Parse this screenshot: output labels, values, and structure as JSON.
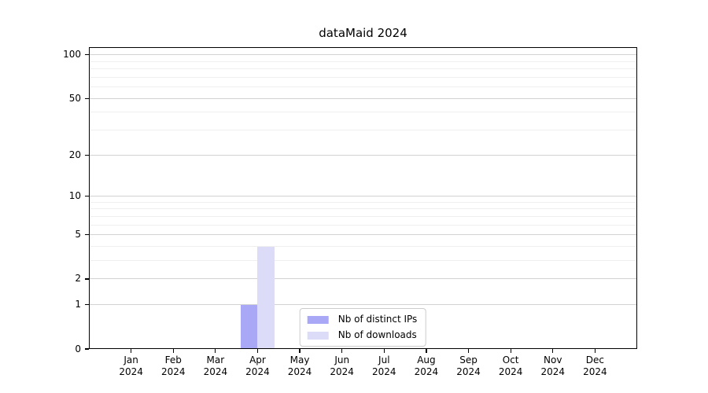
{
  "chart_data": {
    "type": "bar",
    "title": "dataMaid 2024",
    "categories": [
      "Jan 2024",
      "Feb 2024",
      "Mar 2024",
      "Apr 2024",
      "May 2024",
      "Jun 2024",
      "Jul 2024",
      "Aug 2024",
      "Sep 2024",
      "Oct 2024",
      "Nov 2024",
      "Dec 2024"
    ],
    "series": [
      {
        "name": "Nb of distinct IPs",
        "color": "#a8a8f7",
        "values": [
          0,
          0,
          0,
          1,
          0,
          0,
          0,
          0,
          0,
          0,
          0,
          0
        ]
      },
      {
        "name": "Nb of downloads",
        "color": "#dcdcf9",
        "values": [
          0,
          0,
          0,
          4,
          0,
          0,
          0,
          0,
          0,
          0,
          0,
          0
        ]
      }
    ],
    "xlabel": "",
    "ylabel": "",
    "y_axis": {
      "scale": "log1p",
      "min": 0,
      "max": 113,
      "tick_labels": [
        0,
        1,
        2,
        5,
        10,
        20,
        50,
        100
      ],
      "minor_gridlines": [
        3,
        4,
        6,
        7,
        8,
        9,
        30,
        40,
        60,
        70,
        80,
        90
      ]
    },
    "grid": "on",
    "legend_position": "lower center inside plot",
    "colors": {
      "axis": "#000000",
      "major_grid": "#d2d2d2",
      "minor_grid": "#efefef",
      "legend_border": "#cccccc",
      "background": "#ffffff",
      "text": "#000000"
    }
  }
}
